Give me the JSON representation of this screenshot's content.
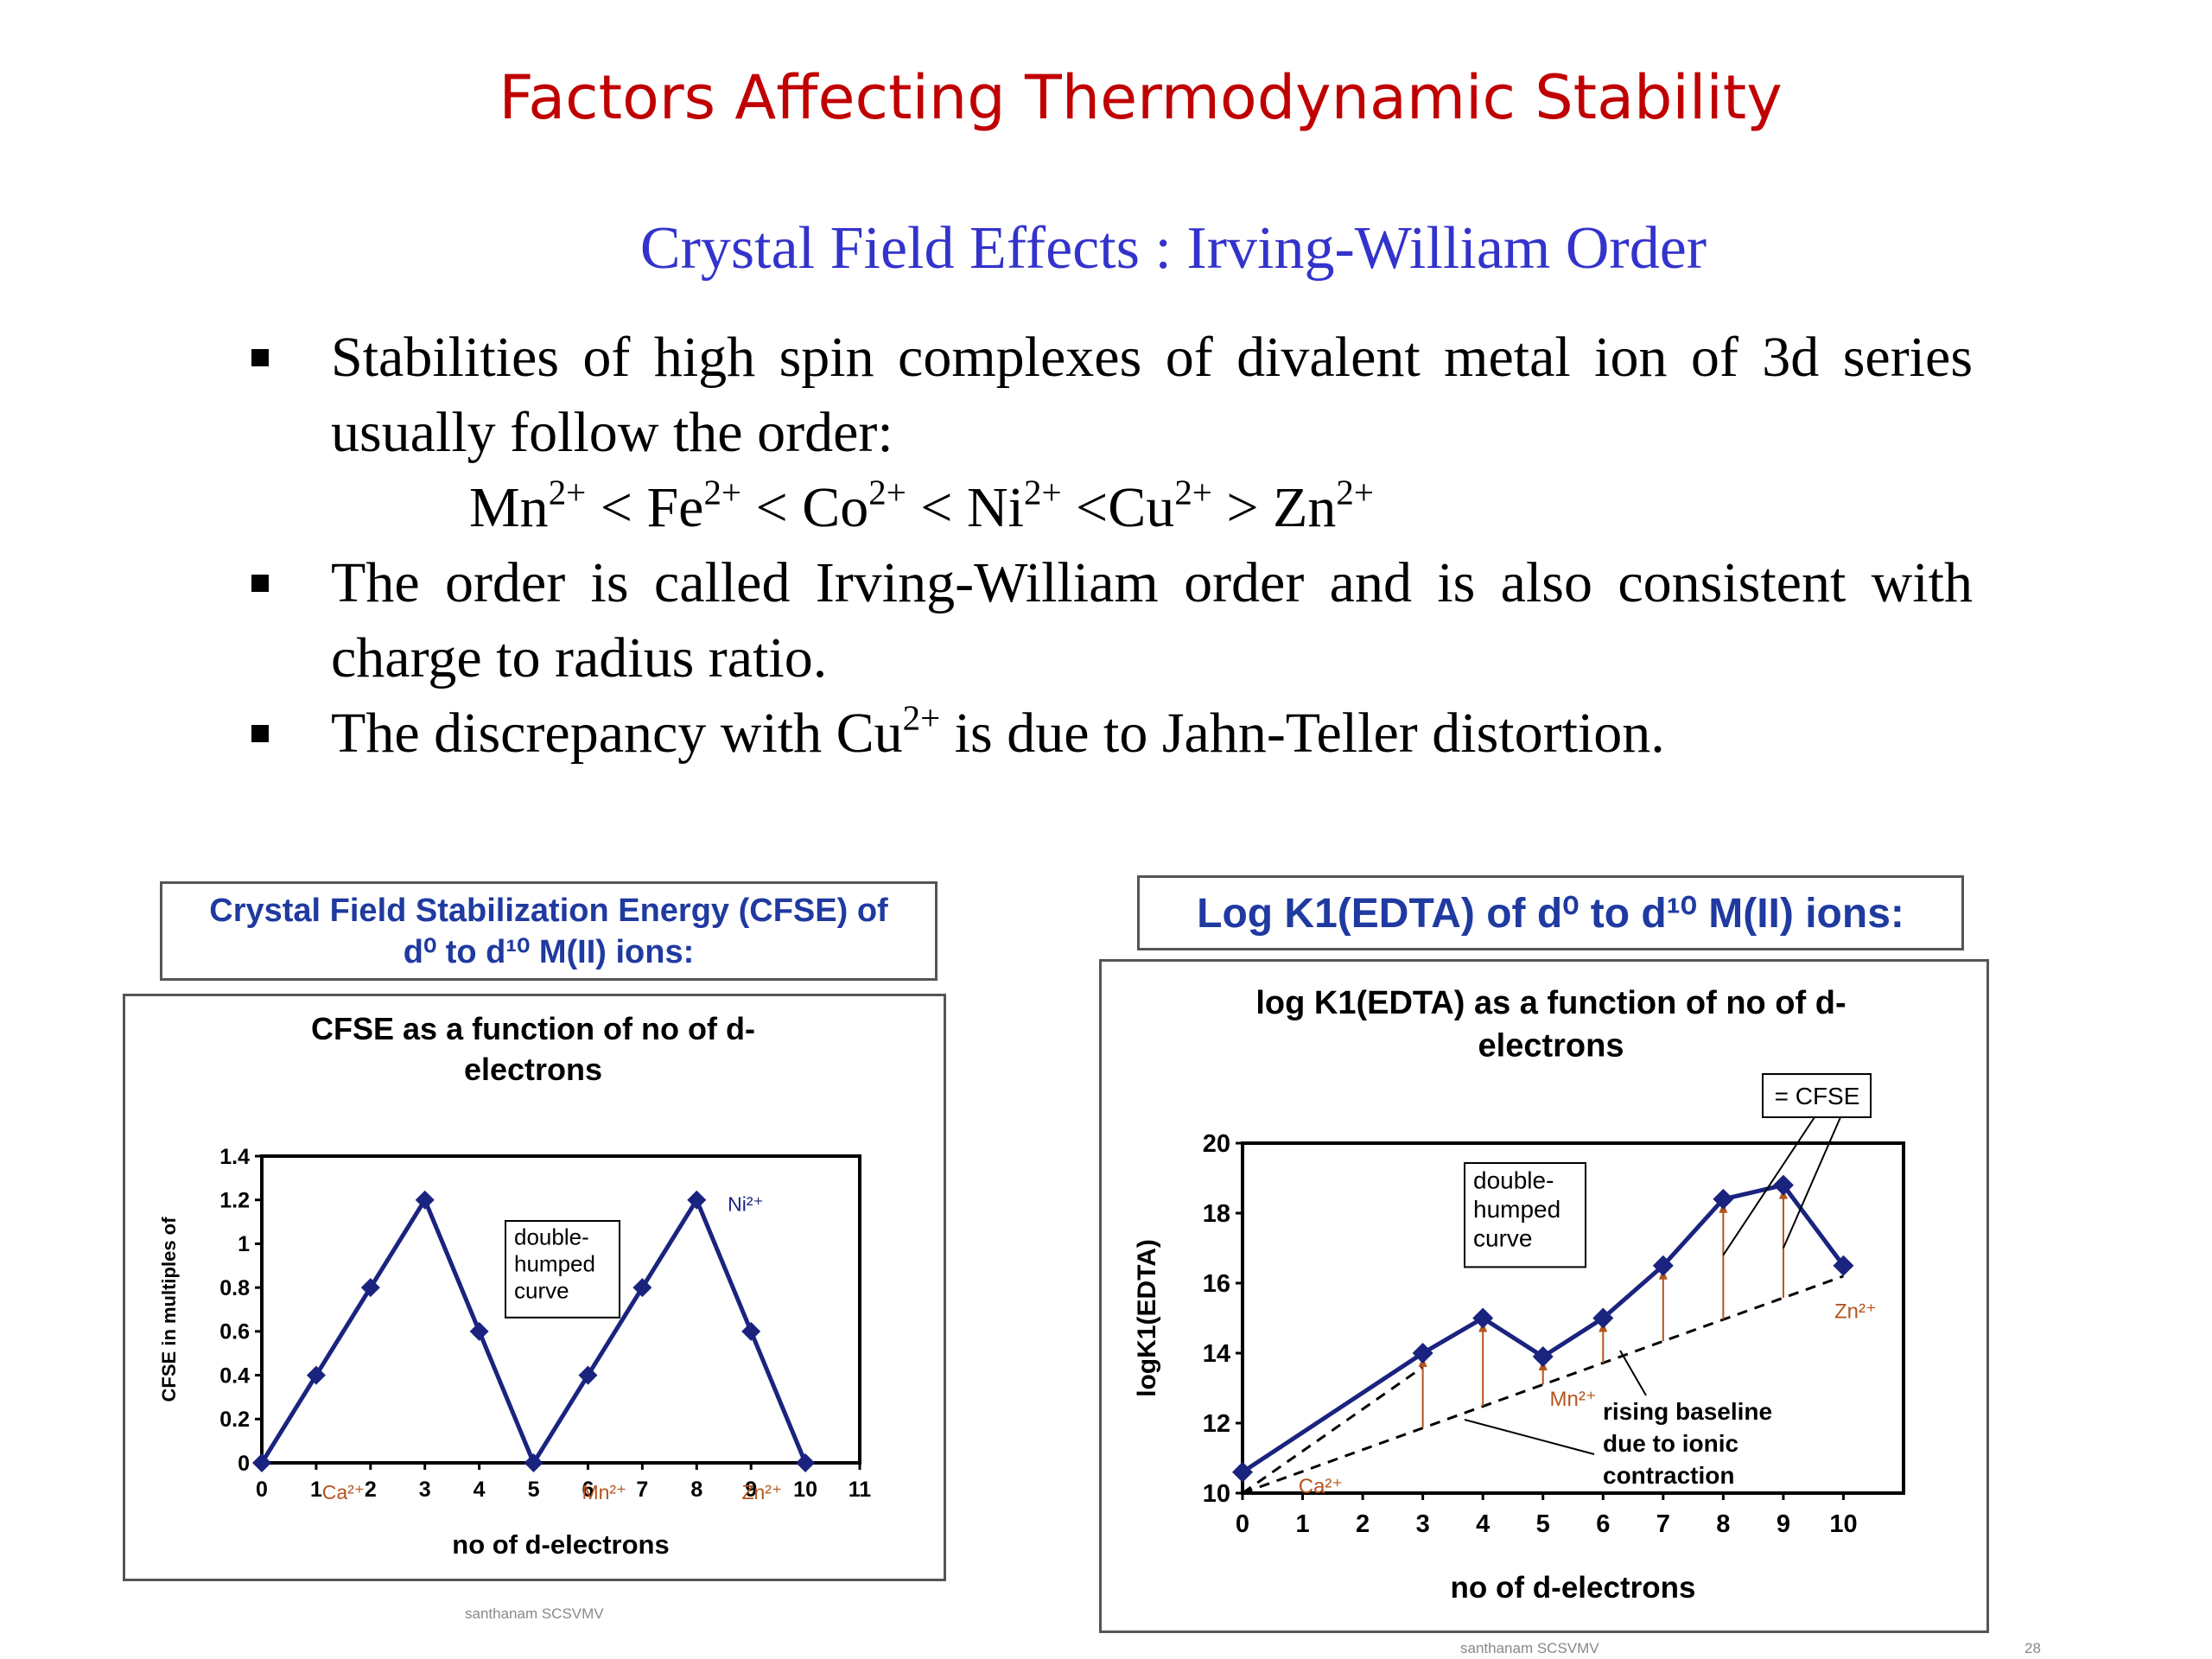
{
  "slide": {
    "title": "Factors Affecting Thermodynamic Stability",
    "subtitle": "Crystal Field Effects : Irving-William Order",
    "bullet1_text": "Stabilities of high spin complexes of divalent metal ion of 3d series usually follow the order:",
    "order": [
      {
        "ion": "Mn",
        "charge": "2+",
        "sep": " < "
      },
      {
        "ion": "Fe",
        "charge": "2+",
        "sep": " < "
      },
      {
        "ion": "Co",
        "charge": "2+",
        "sep": " < "
      },
      {
        "ion": "Ni",
        "charge": "2+",
        "sep": " <"
      },
      {
        "ion": "Cu",
        "charge": "2+",
        "sep": " > "
      },
      {
        "ion": "Zn",
        "charge": "2+",
        "sep": ""
      }
    ],
    "bullet2_text": "The order is called Irving-William order and is also consistent with charge to radius ratio.",
    "bullet3_pre": "The discrepancy with Cu",
    "bullet3_sup": "2+",
    "bullet3_post": " is due to Jahn-Teller distortion.",
    "footer_left": "santhanam SCSVMV",
    "footer_right": "santhanam SCSVMV",
    "page_number": "28",
    "colors": {
      "title": "#c00000",
      "subtitle": "#3333cc",
      "caption": "#1f3aa0",
      "series": "#1a237e",
      "ion_label": "#b5541c"
    }
  },
  "chart_data": [
    {
      "type": "line",
      "caption_line1": "Crystal Field Stabilization Energy (CFSE) of",
      "caption_line2": "d⁰ to d¹⁰ M(II) ions:",
      "title_line1": "CFSE as a function of no of d-",
      "title_line2": "electrons",
      "xlabel": "no of d-electrons",
      "ylabel": "CFSE in multiples of",
      "xlim": [
        0,
        11
      ],
      "ylim": [
        0,
        1.4
      ],
      "x_ticks": [
        "0",
        "1",
        "2",
        "3",
        "4",
        "5",
        "6",
        "7",
        "8",
        "9",
        "10",
        "11"
      ],
      "y_ticks": [
        "0",
        "0.2",
        "0.4",
        "0.6",
        "0.8",
        "1",
        "1.2",
        "1.4"
      ],
      "x": [
        0,
        1,
        2,
        3,
        4,
        5,
        6,
        7,
        8,
        9,
        10
      ],
      "y": [
        0,
        0.4,
        0.8,
        1.2,
        0.6,
        0,
        0.4,
        0.8,
        1.2,
        0.6,
        0
      ],
      "annotation_lines": [
        "double-",
        "humped",
        "curve"
      ],
      "ion_labels": [
        {
          "text": "Ca²⁺",
          "x": 1.5,
          "y": -0.15
        },
        {
          "text": "Mn²⁺",
          "x": 6.3,
          "y": -0.15
        },
        {
          "text": "Zn²⁺",
          "x": 9.2,
          "y": -0.15
        },
        {
          "text": "Ni²⁺",
          "x": 8.9,
          "y": 1.15
        }
      ]
    },
    {
      "type": "line",
      "caption": "Log K1(EDTA) of d⁰ to d¹⁰ M(II) ions:",
      "title_line1": "log K1(EDTA) as a function of no of d-",
      "title_line2": "electrons",
      "xlabel": "no of d-electrons",
      "ylabel": "logK1(EDTA)",
      "xlim": [
        0,
        11
      ],
      "ylim": [
        10,
        20
      ],
      "x_ticks": [
        "0",
        "1",
        "2",
        "3",
        "4",
        "5",
        "6",
        "7",
        "8",
        "9",
        "10"
      ],
      "y_ticks": [
        "10",
        "12",
        "14",
        "16",
        "18",
        "20"
      ],
      "x": [
        0,
        3,
        4,
        5,
        6,
        7,
        8,
        9,
        10
      ],
      "y": [
        10.6,
        14,
        15,
        13.9,
        15,
        16.5,
        18.4,
        18.8,
        16.5
      ],
      "baseline_upper": {
        "x": [
          0,
          10
        ],
        "y": [
          10,
          16.2
        ]
      },
      "baseline_lower": {
        "x": [
          0,
          3
        ],
        "y": [
          10,
          13.6
        ]
      },
      "annotation_curve_lines": [
        "double-",
        "humped",
        "curve"
      ],
      "cfse_label": "= CFSE",
      "baseline_lines": [
        "rising baseline",
        "due to ionic",
        "contraction"
      ],
      "ion_labels": [
        {
          "text": "Ca²⁺",
          "x": 1.3,
          "y": 10
        },
        {
          "text": "Mn²⁺",
          "x": 5.5,
          "y": 12.5
        },
        {
          "text": "Zn²⁺",
          "x": 10.2,
          "y": 15
        }
      ]
    }
  ]
}
